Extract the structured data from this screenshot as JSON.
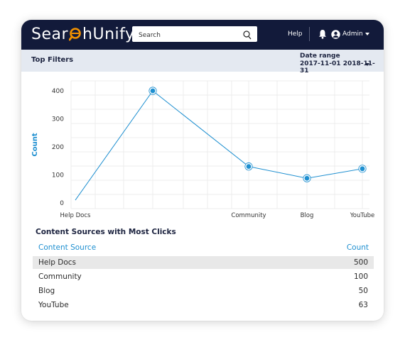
{
  "header": {
    "logo_left": "Sear",
    "logo_right": "hUnify",
    "logo_reg": "®",
    "search_placeholder": "Search",
    "help_label": "Help",
    "user_label": "Admin"
  },
  "filter_bar": {
    "title": "Top Filters",
    "date_range_label": "Date range",
    "date_range_value": "2017-11-01 2018-11-31"
  },
  "chart_data": {
    "type": "line",
    "categories": [
      "Help Docs",
      "Community",
      "Blog",
      "YouTube"
    ],
    "x_tick_labels": [
      "Help Docs",
      "",
      "Community",
      "Blog",
      "YouTube"
    ],
    "series": [
      {
        "values": [
          10,
          400,
          130,
          88,
          122
        ],
        "x": [
          "",
          "Help Docs",
          "Community",
          "Blog",
          "YouTube"
        ]
      }
    ],
    "ylabel": "Count",
    "yticks": [
      0,
      100,
      200,
      300,
      400
    ],
    "ylim": [
      0,
      430
    ],
    "grid": true,
    "color": "#1e8fd0"
  },
  "table": {
    "title": "Content Sources with Most Clicks",
    "col_source": "Content Source",
    "col_count": "Count",
    "rows": [
      {
        "source": "Help Docs",
        "count": "500"
      },
      {
        "source": "Community",
        "count": "100"
      },
      {
        "source": "Blog",
        "count": "50"
      },
      {
        "source": "YouTube",
        "count": "63"
      }
    ]
  },
  "colors": {
    "topbar": "#121a3a",
    "filterbar": "#e4e9f1",
    "accent": "#1e8fd0",
    "logo_accent": "#f39200"
  }
}
